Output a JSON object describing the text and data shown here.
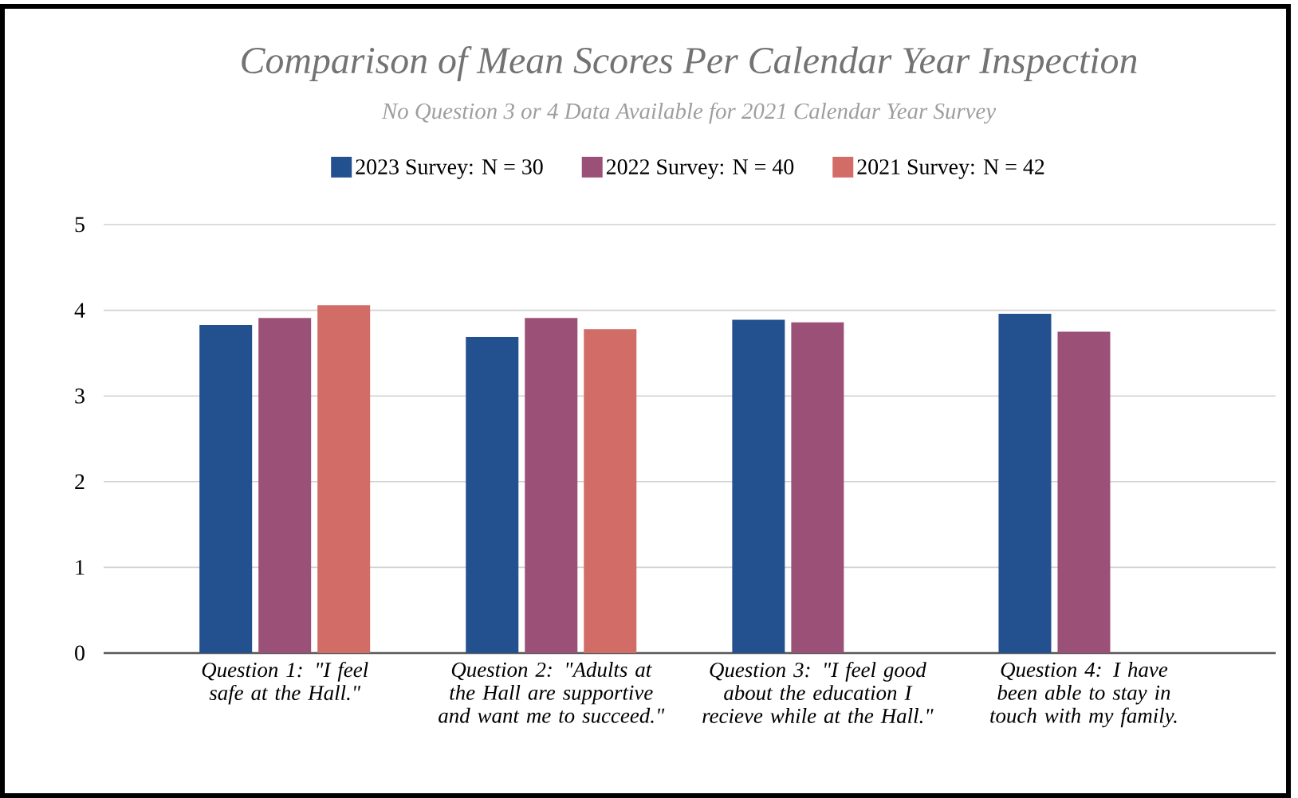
{
  "chart_data": {
    "type": "bar",
    "title": "Comparison of Mean Scores Per Calendar Year Inspection",
    "subtitle": "*No Question 3 or 4 Data Available for 2021 Calendar Year Survey*",
    "categories": [
      "Question 1: \"I feel safe at the Hall.\"",
      "Question 2: \"Adults at the Hall are supportive and want me to succeed.\"",
      "Question 3: \"I feel good about the education I recieve while at the Hall.\"",
      "Question 4: I have been able to stay in touch with my family."
    ],
    "series": [
      {
        "name": "2023 Survey: N = 30",
        "color": "#23508e",
        "values": [
          3.83,
          3.69,
          3.89,
          3.96
        ]
      },
      {
        "name": "2022 Survey: N = 40",
        "color": "#9b5077",
        "values": [
          3.91,
          3.91,
          3.86,
          3.75
        ]
      },
      {
        "name": "2021 Survey: N = 42",
        "color": "#d26c66",
        "values": [
          4.06,
          3.78,
          null,
          null
        ]
      }
    ],
    "ylim": [
      0,
      5
    ],
    "yticks": [
      0,
      1,
      2,
      3,
      4,
      5
    ],
    "grid": "y",
    "legend": "top"
  }
}
